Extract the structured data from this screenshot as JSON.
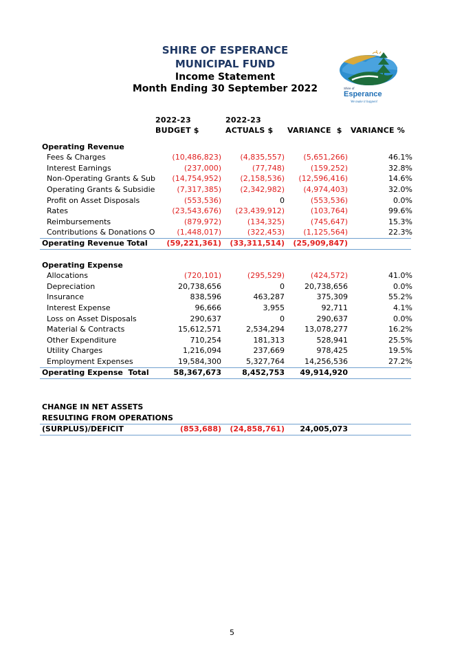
{
  "header": {
    "org": "SHIRE OF ESPERANCE",
    "fund": "MUNICIPAL FUND",
    "statement": "Income Statement",
    "period": "Month Ending 30 September 2022"
  },
  "logo": {
    "small_text": "Shire of",
    "name": "Esperance",
    "tagline": "We make it happen!"
  },
  "columns": {
    "budget_year": "2022-23",
    "budget_label": "BUDGET $",
    "actuals_year": "2022-23",
    "actuals_label": "ACTUALS $",
    "variance_label": "VARIANCE  $",
    "variance_pct_label": "VARIANCE %"
  },
  "revenue": {
    "title": "Operating Revenue",
    "rows": [
      {
        "label": "Fees & Charges",
        "budget": "(10,486,823)",
        "actuals": "(4,835,557)",
        "variance": "(5,651,266)",
        "pct": "46.1%"
      },
      {
        "label": "Interest Earnings",
        "budget": "(237,000)",
        "actuals": "(77,748)",
        "variance": "(159,252)",
        "pct": "32.8%"
      },
      {
        "label": "Non-Operating Grants & Subsic",
        "budget": "(14,754,952)",
        "actuals": "(2,158,536)",
        "variance": "(12,596,416)",
        "pct": "14.6%"
      },
      {
        "label": "Operating Grants & Subsidies",
        "budget": "(7,317,385)",
        "actuals": "(2,342,982)",
        "variance": "(4,974,403)",
        "pct": "32.0%"
      },
      {
        "label": "Profit on Asset Disposals",
        "budget": "(553,536)",
        "actuals": "0",
        "variance": "(553,536)",
        "pct": "0.0%"
      },
      {
        "label": "Rates",
        "budget": "(23,543,676)",
        "actuals": "(23,439,912)",
        "variance": "(103,764)",
        "pct": "99.6%"
      },
      {
        "label": "Reimbursements",
        "budget": "(879,972)",
        "actuals": "(134,325)",
        "variance": "(745,647)",
        "pct": "15.3%"
      },
      {
        "label": "Contributions & Donations Ope",
        "budget": "(1,448,017)",
        "actuals": "(322,453)",
        "variance": "(1,125,564)",
        "pct": "22.3%"
      }
    ],
    "total": {
      "label": "Operating Revenue Total",
      "budget": "(59,221,361)",
      "actuals": "(33,311,514)",
      "variance": "(25,909,847)"
    }
  },
  "expense": {
    "title": "Operating Expense",
    "rows": [
      {
        "label": "Allocations",
        "budget": "(720,101)",
        "actuals": "(295,529)",
        "variance": "(424,572)",
        "pct": "41.0%"
      },
      {
        "label": "Depreciation",
        "budget": "20,738,656",
        "actuals": "0",
        "variance": "20,738,656",
        "pct": "0.0%"
      },
      {
        "label": "Insurance",
        "budget": "838,596",
        "actuals": "463,287",
        "variance": "375,309",
        "pct": "55.2%"
      },
      {
        "label": "Interest Expense",
        "budget": "96,666",
        "actuals": "3,955",
        "variance": "92,711",
        "pct": "4.1%"
      },
      {
        "label": "Loss on Asset Disposals",
        "budget": "290,637",
        "actuals": "0",
        "variance": "290,637",
        "pct": "0.0%"
      },
      {
        "label": "Material & Contracts",
        "budget": "15,612,571",
        "actuals": "2,534,294",
        "variance": "13,078,277",
        "pct": "16.2%"
      },
      {
        "label": "Other Expenditure",
        "budget": "710,254",
        "actuals": "181,313",
        "variance": "528,941",
        "pct": "25.5%"
      },
      {
        "label": "Utility Charges",
        "budget": "1,216,094",
        "actuals": "237,669",
        "variance": "978,425",
        "pct": "19.5%"
      },
      {
        "label": "Employment Expenses",
        "budget": "19,584,300",
        "actuals": "5,327,764",
        "variance": "14,256,536",
        "pct": "27.2%"
      }
    ],
    "total": {
      "label": "Operating Expense  Total",
      "budget": "58,367,673",
      "actuals": "8,452,753",
      "variance": "49,914,920"
    }
  },
  "net": {
    "line1": "CHANGE IN NET ASSETS",
    "line2": "RESULTING FROM OPERATIONS",
    "label": "(SURPLUS)/DEFICIT",
    "budget": "(853,688)",
    "actuals": "(24,858,761)",
    "variance": "24,005,073"
  },
  "page_number": "5",
  "colors": {
    "heading": "#1f3864",
    "negative": "#e02020",
    "rule": "#6fa0cf"
  }
}
